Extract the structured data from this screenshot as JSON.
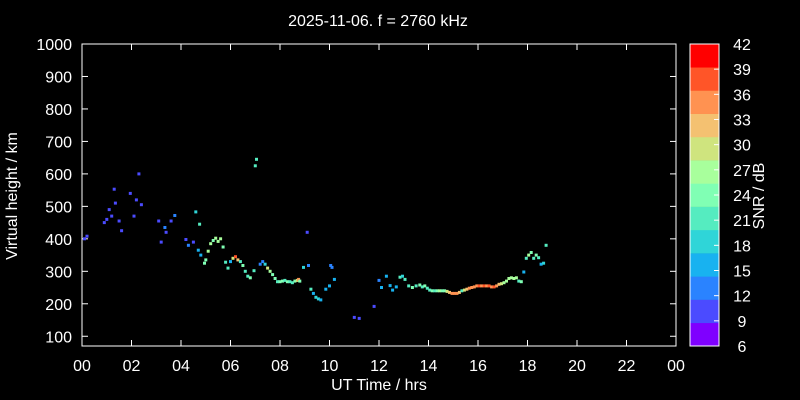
{
  "chart_data": {
    "type": "scatter",
    "title": "2025-11-06. f = 2760 kHz",
    "xlabel": "UT Time / hrs",
    "ylabel": "Virtual height / km",
    "colorbar_label": "SNR / dB",
    "xlim": [
      0,
      24
    ],
    "ylim": [
      70,
      1000
    ],
    "xticks": [
      "00",
      "02",
      "04",
      "06",
      "08",
      "10",
      "12",
      "14",
      "16",
      "18",
      "20",
      "22",
      "00"
    ],
    "yticks": [
      100,
      200,
      300,
      400,
      500,
      600,
      700,
      800,
      900,
      1000
    ],
    "colorbar_ticks": [
      6,
      9,
      12,
      15,
      18,
      21,
      24,
      27,
      30,
      33,
      36,
      39,
      42
    ],
    "colorbar_colors": [
      "#7f00ff",
      "#4b4bff",
      "#2a83ff",
      "#18b2f0",
      "#2fd5d8",
      "#55ecc0",
      "#80ffb4",
      "#a8ff9c",
      "#cfe47e",
      "#f4c171",
      "#ff9251",
      "#ff5528",
      "#ff0000"
    ],
    "grid": false,
    "points": [
      {
        "x": 0.1,
        "y": 400,
        "snr": 9
      },
      {
        "x": 0.2,
        "y": 408,
        "snr": 9
      },
      {
        "x": 0.9,
        "y": 450,
        "snr": 10
      },
      {
        "x": 1.0,
        "y": 460,
        "snr": 10
      },
      {
        "x": 1.1,
        "y": 490,
        "snr": 9
      },
      {
        "x": 1.2,
        "y": 470,
        "snr": 10
      },
      {
        "x": 1.3,
        "y": 553,
        "snr": 9
      },
      {
        "x": 1.35,
        "y": 510,
        "snr": 10
      },
      {
        "x": 1.5,
        "y": 455,
        "snr": 9
      },
      {
        "x": 1.6,
        "y": 425,
        "snr": 9
      },
      {
        "x": 1.95,
        "y": 540,
        "snr": 10
      },
      {
        "x": 2.1,
        "y": 470,
        "snr": 9
      },
      {
        "x": 2.2,
        "y": 520,
        "snr": 10
      },
      {
        "x": 2.3,
        "y": 600,
        "snr": 9
      },
      {
        "x": 2.4,
        "y": 505,
        "snr": 9
      },
      {
        "x": 3.1,
        "y": 455,
        "snr": 10
      },
      {
        "x": 3.2,
        "y": 390,
        "snr": 10
      },
      {
        "x": 3.35,
        "y": 435,
        "snr": 11
      },
      {
        "x": 3.4,
        "y": 420,
        "snr": 10
      },
      {
        "x": 3.6,
        "y": 455,
        "snr": 10
      },
      {
        "x": 3.75,
        "y": 472,
        "snr": 11
      },
      {
        "x": 4.2,
        "y": 398,
        "snr": 10
      },
      {
        "x": 4.3,
        "y": 380,
        "snr": 12
      },
      {
        "x": 4.5,
        "y": 390,
        "snr": 10
      },
      {
        "x": 4.6,
        "y": 483,
        "snr": 18
      },
      {
        "x": 4.75,
        "y": 445,
        "snr": 22
      },
      {
        "x": 4.7,
        "y": 365,
        "snr": 14
      },
      {
        "x": 4.8,
        "y": 350,
        "snr": 14
      },
      {
        "x": 4.95,
        "y": 325,
        "snr": 24
      },
      {
        "x": 5.0,
        "y": 335,
        "snr": 24
      },
      {
        "x": 5.1,
        "y": 362,
        "snr": 28
      },
      {
        "x": 5.2,
        "y": 385,
        "snr": 26
      },
      {
        "x": 5.3,
        "y": 395,
        "snr": 24
      },
      {
        "x": 5.4,
        "y": 402,
        "snr": 28
      },
      {
        "x": 5.5,
        "y": 392,
        "snr": 26
      },
      {
        "x": 5.6,
        "y": 400,
        "snr": 28
      },
      {
        "x": 5.7,
        "y": 375,
        "snr": 24
      },
      {
        "x": 5.8,
        "y": 328,
        "snr": 20
      },
      {
        "x": 5.9,
        "y": 310,
        "snr": 22
      },
      {
        "x": 6.0,
        "y": 330,
        "snr": 14
      },
      {
        "x": 6.1,
        "y": 340,
        "snr": 30
      },
      {
        "x": 6.2,
        "y": 345,
        "snr": 38
      },
      {
        "x": 6.3,
        "y": 335,
        "snr": 34
      },
      {
        "x": 6.4,
        "y": 330,
        "snr": 22
      },
      {
        "x": 6.5,
        "y": 318,
        "snr": 24
      },
      {
        "x": 6.6,
        "y": 300,
        "snr": 20
      },
      {
        "x": 6.7,
        "y": 285,
        "snr": 22
      },
      {
        "x": 6.8,
        "y": 280,
        "snr": 24
      },
      {
        "x": 6.95,
        "y": 302,
        "snr": 20
      },
      {
        "x": 7.0,
        "y": 625,
        "snr": 22
      },
      {
        "x": 7.05,
        "y": 645,
        "snr": 20
      },
      {
        "x": 7.2,
        "y": 322,
        "snr": 12
      },
      {
        "x": 7.3,
        "y": 330,
        "snr": 12
      },
      {
        "x": 7.4,
        "y": 322,
        "snr": 18
      },
      {
        "x": 7.5,
        "y": 310,
        "snr": 30
      },
      {
        "x": 7.6,
        "y": 300,
        "snr": 26
      },
      {
        "x": 7.7,
        "y": 290,
        "snr": 24
      },
      {
        "x": 7.8,
        "y": 278,
        "snr": 24
      },
      {
        "x": 7.9,
        "y": 268,
        "snr": 22
      },
      {
        "x": 8.0,
        "y": 268,
        "snr": 24
      },
      {
        "x": 8.1,
        "y": 270,
        "snr": 24
      },
      {
        "x": 8.2,
        "y": 272,
        "snr": 22
      },
      {
        "x": 8.3,
        "y": 268,
        "snr": 24
      },
      {
        "x": 8.4,
        "y": 268,
        "snr": 22
      },
      {
        "x": 8.5,
        "y": 265,
        "snr": 22
      },
      {
        "x": 8.6,
        "y": 270,
        "snr": 24
      },
      {
        "x": 8.7,
        "y": 272,
        "snr": 30
      },
      {
        "x": 8.75,
        "y": 275,
        "snr": 36
      },
      {
        "x": 8.8,
        "y": 270,
        "snr": 24
      },
      {
        "x": 8.95,
        "y": 312,
        "snr": 18
      },
      {
        "x": 9.1,
        "y": 420,
        "snr": 10
      },
      {
        "x": 9.15,
        "y": 318,
        "snr": 12
      },
      {
        "x": 9.25,
        "y": 245,
        "snr": 20
      },
      {
        "x": 9.35,
        "y": 232,
        "snr": 16
      },
      {
        "x": 9.45,
        "y": 220,
        "snr": 18
      },
      {
        "x": 9.55,
        "y": 215,
        "snr": 17
      },
      {
        "x": 9.65,
        "y": 212,
        "snr": 16
      },
      {
        "x": 9.85,
        "y": 245,
        "snr": 14
      },
      {
        "x": 10.0,
        "y": 255,
        "snr": 14
      },
      {
        "x": 10.05,
        "y": 318,
        "snr": 12
      },
      {
        "x": 10.1,
        "y": 312,
        "snr": 12
      },
      {
        "x": 10.2,
        "y": 275,
        "snr": 16
      },
      {
        "x": 11.0,
        "y": 158,
        "snr": 9
      },
      {
        "x": 11.2,
        "y": 155,
        "snr": 9
      },
      {
        "x": 11.8,
        "y": 192,
        "snr": 10
      },
      {
        "x": 12.0,
        "y": 272,
        "snr": 12
      },
      {
        "x": 12.1,
        "y": 250,
        "snr": 14
      },
      {
        "x": 12.3,
        "y": 285,
        "snr": 14
      },
      {
        "x": 12.45,
        "y": 256,
        "snr": 14
      },
      {
        "x": 12.55,
        "y": 242,
        "snr": 14
      },
      {
        "x": 12.7,
        "y": 252,
        "snr": 16
      },
      {
        "x": 12.85,
        "y": 282,
        "snr": 20
      },
      {
        "x": 12.95,
        "y": 285,
        "snr": 18
      },
      {
        "x": 13.05,
        "y": 275,
        "snr": 20
      },
      {
        "x": 13.2,
        "y": 255,
        "snr": 22
      },
      {
        "x": 13.35,
        "y": 250,
        "snr": 24
      },
      {
        "x": 13.5,
        "y": 255,
        "snr": 22
      },
      {
        "x": 13.65,
        "y": 258,
        "snr": 24
      },
      {
        "x": 13.75,
        "y": 252,
        "snr": 22
      },
      {
        "x": 13.85,
        "y": 255,
        "snr": 24
      },
      {
        "x": 13.95,
        "y": 248,
        "snr": 22
      },
      {
        "x": 14.05,
        "y": 242,
        "snr": 22
      },
      {
        "x": 14.15,
        "y": 240,
        "snr": 24
      },
      {
        "x": 14.25,
        "y": 240,
        "snr": 22
      },
      {
        "x": 14.35,
        "y": 240,
        "snr": 24
      },
      {
        "x": 14.45,
        "y": 240,
        "snr": 26
      },
      {
        "x": 14.55,
        "y": 240,
        "snr": 24
      },
      {
        "x": 14.65,
        "y": 240,
        "snr": 24
      },
      {
        "x": 14.75,
        "y": 238,
        "snr": 30
      },
      {
        "x": 14.85,
        "y": 235,
        "snr": 34
      },
      {
        "x": 14.95,
        "y": 232,
        "snr": 36
      },
      {
        "x": 15.05,
        "y": 232,
        "snr": 36
      },
      {
        "x": 15.15,
        "y": 232,
        "snr": 36
      },
      {
        "x": 15.25,
        "y": 235,
        "snr": 34
      },
      {
        "x": 15.35,
        "y": 240,
        "snr": 20
      },
      {
        "x": 15.45,
        "y": 242,
        "snr": 30
      },
      {
        "x": 15.55,
        "y": 245,
        "snr": 34
      },
      {
        "x": 15.65,
        "y": 248,
        "snr": 36
      },
      {
        "x": 15.75,
        "y": 250,
        "snr": 36
      },
      {
        "x": 15.85,
        "y": 252,
        "snr": 36
      },
      {
        "x": 15.95,
        "y": 255,
        "snr": 36
      },
      {
        "x": 16.05,
        "y": 255,
        "snr": 38
      },
      {
        "x": 16.15,
        "y": 255,
        "snr": 36
      },
      {
        "x": 16.25,
        "y": 255,
        "snr": 38
      },
      {
        "x": 16.35,
        "y": 255,
        "snr": 36
      },
      {
        "x": 16.45,
        "y": 255,
        "snr": 38
      },
      {
        "x": 16.55,
        "y": 252,
        "snr": 36
      },
      {
        "x": 16.65,
        "y": 252,
        "snr": 38
      },
      {
        "x": 16.75,
        "y": 255,
        "snr": 36
      },
      {
        "x": 16.85,
        "y": 260,
        "snr": 34
      },
      {
        "x": 16.95,
        "y": 262,
        "snr": 30
      },
      {
        "x": 17.05,
        "y": 265,
        "snr": 26
      },
      {
        "x": 17.15,
        "y": 270,
        "snr": 28
      },
      {
        "x": 17.25,
        "y": 278,
        "snr": 26
      },
      {
        "x": 17.35,
        "y": 280,
        "snr": 28
      },
      {
        "x": 17.45,
        "y": 278,
        "snr": 26
      },
      {
        "x": 17.55,
        "y": 280,
        "snr": 28
      },
      {
        "x": 17.65,
        "y": 270,
        "snr": 22
      },
      {
        "x": 17.75,
        "y": 268,
        "snr": 24
      },
      {
        "x": 17.85,
        "y": 298,
        "snr": 14
      },
      {
        "x": 17.95,
        "y": 340,
        "snr": 22
      },
      {
        "x": 18.05,
        "y": 350,
        "snr": 26
      },
      {
        "x": 18.15,
        "y": 358,
        "snr": 24
      },
      {
        "x": 18.25,
        "y": 340,
        "snr": 22
      },
      {
        "x": 18.35,
        "y": 350,
        "snr": 24
      },
      {
        "x": 18.45,
        "y": 342,
        "snr": 22
      },
      {
        "x": 18.55,
        "y": 322,
        "snr": 16
      },
      {
        "x": 18.65,
        "y": 325,
        "snr": 18
      },
      {
        "x": 18.75,
        "y": 380,
        "snr": 22
      }
    ]
  }
}
